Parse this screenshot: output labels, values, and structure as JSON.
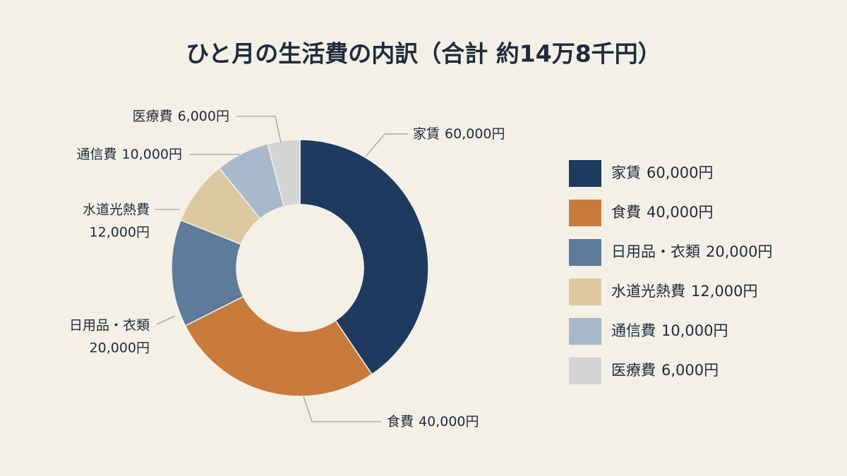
{
  "chart_data": {
    "type": "donut",
    "title": "ひと月の生活費の内訳（合計 約14万8千円）",
    "categories": [
      "家賃",
      "食費",
      "日用品・衣類",
      "水道光熱費",
      "通信費",
      "医療費"
    ],
    "values": [
      60000,
      40000,
      20000,
      12000,
      10000,
      6000
    ],
    "value_labels": [
      "60,000円",
      "40,000円",
      "20,000円",
      "12,000円",
      "10,000円",
      "6,000円"
    ],
    "colors": [
      "#1e3a5f",
      "#c97b3c",
      "#5f7b9b",
      "#dcc8a0",
      "#a8b9cc",
      "#d4d4d4"
    ],
    "legend": "right"
  }
}
